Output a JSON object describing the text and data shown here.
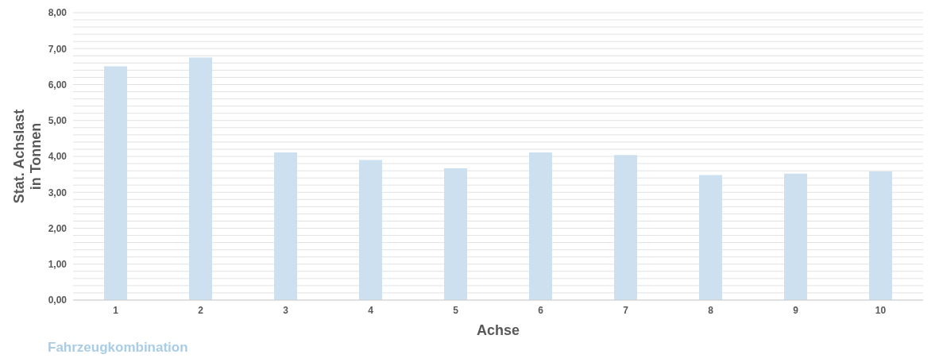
{
  "chart_data": {
    "type": "bar",
    "xlabel": "Achse",
    "ylabel": "Stat. Achslast in Tonnen",
    "categories": [
      "1",
      "2",
      "3",
      "4",
      "5",
      "6",
      "7",
      "8",
      "9",
      "10"
    ],
    "values": [
      6.51,
      6.75,
      4.11,
      3.9,
      3.67,
      4.11,
      4.04,
      3.48,
      3.52,
      3.58
    ],
    "color": "#cce0ef",
    "ylim": [
      0,
      8
    ],
    "yticks": [
      {
        "value": 0,
        "label": "0,00"
      },
      {
        "value": 0.2,
        "label": null
      },
      {
        "value": 0.4,
        "label": null
      },
      {
        "value": 0.6,
        "label": null
      },
      {
        "value": 0.8,
        "label": null
      },
      {
        "value": 1,
        "label": "1,00"
      },
      {
        "value": 1.2,
        "label": null
      },
      {
        "value": 1.4,
        "label": null
      },
      {
        "value": 1.6,
        "label": null
      },
      {
        "value": 1.8,
        "label": null
      },
      {
        "value": 2,
        "label": "2,00"
      },
      {
        "value": 2.2,
        "label": null
      },
      {
        "value": 2.4,
        "label": null
      },
      {
        "value": 2.6,
        "label": null
      },
      {
        "value": 2.8,
        "label": null
      },
      {
        "value": 3,
        "label": "3,00"
      },
      {
        "value": 3.2,
        "label": null
      },
      {
        "value": 3.4,
        "label": null
      },
      {
        "value": 3.6,
        "label": null
      },
      {
        "value": 3.8,
        "label": null
      },
      {
        "value": 4,
        "label": "4,00"
      },
      {
        "value": 4.2,
        "label": null
      },
      {
        "value": 4.4,
        "label": null
      },
      {
        "value": 4.6,
        "label": null
      },
      {
        "value": 4.8,
        "label": null
      },
      {
        "value": 5,
        "label": "5,00"
      },
      {
        "value": 5.2,
        "label": null
      },
      {
        "value": 5.4,
        "label": null
      },
      {
        "value": 5.6,
        "label": null
      },
      {
        "value": 5.8,
        "label": null
      },
      {
        "value": 6,
        "label": "6,00"
      },
      {
        "value": 6.2,
        "label": null
      },
      {
        "value": 6.4,
        "label": null
      },
      {
        "value": 6.6,
        "label": null
      },
      {
        "value": 6.8,
        "label": null
      },
      {
        "value": 7,
        "label": "7,00"
      },
      {
        "value": 7.2,
        "label": null
      },
      {
        "value": 7.4,
        "label": null
      },
      {
        "value": 7.6,
        "label": null
      },
      {
        "value": 7.8,
        "label": null
      },
      {
        "value": 8,
        "label": "8,00"
      }
    ],
    "grid": "y",
    "legend": false,
    "annotations": [
      "Fahrzeugkombination"
    ]
  }
}
